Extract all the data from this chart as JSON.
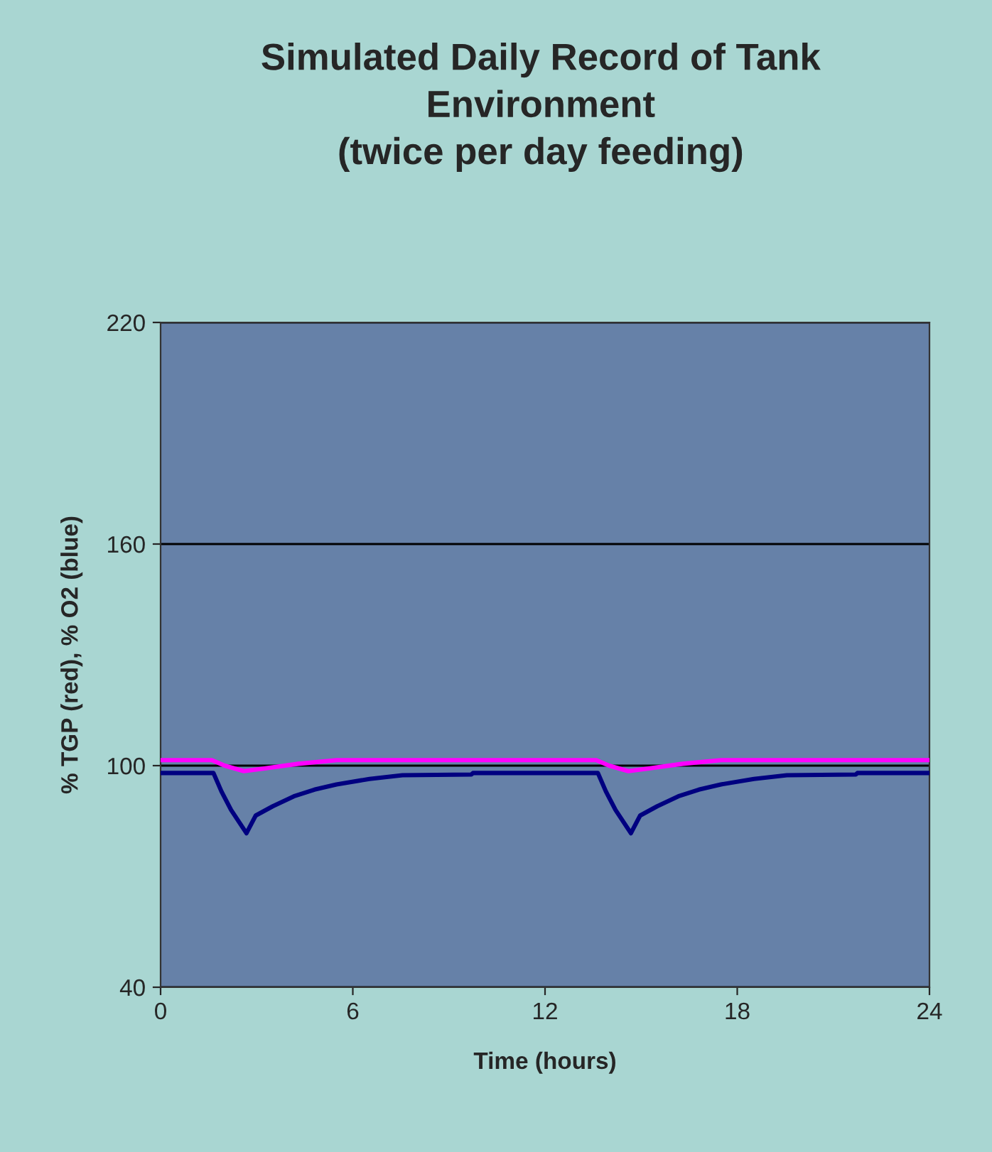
{
  "chart_data": {
    "type": "line",
    "title": "Simulated Daily Record of Tank\nEnvironment\n(twice per day feeding)",
    "xlabel": "Time (hours)",
    "ylabel": "% TGP (red), % O2 (blue)",
    "xlim": [
      0,
      24
    ],
    "xticks": [
      0,
      6,
      12,
      18,
      24
    ],
    "ylim": [
      40,
      220
    ],
    "yticks": [
      40,
      100,
      160,
      220
    ],
    "grid": "y",
    "legend": false,
    "marker": "none",
    "line_style": "solid",
    "series": [
      {
        "color": "#ff00ff",
        "x": [
          0,
          1.6,
          2.0,
          2.6,
          3.2,
          4.3,
          5.5,
          13.6,
          14.0,
          14.6,
          15.2,
          16.3,
          17.5,
          24
        ],
        "values": [
          101.5,
          101.5,
          100,
          98.5,
          99.2,
          100.5,
          101.5,
          101.5,
          100,
          98.5,
          99.2,
          100.5,
          101.5,
          101.5
        ]
      },
      {
        "color": "#000080",
        "x": [
          0,
          1.65,
          1.9,
          2.2,
          2.68,
          2.97,
          3.5,
          4.16,
          4.8,
          5.49,
          6.52,
          7.55,
          9.7,
          9.75,
          13.65,
          13.9,
          14.2,
          14.68,
          14.97,
          15.5,
          16.16,
          16.8,
          17.49,
          18.52,
          19.55,
          21.7,
          21.75,
          24
        ],
        "values": [
          98,
          98,
          93,
          88,
          81.7,
          86.5,
          89,
          91.7,
          93.5,
          94.9,
          96.4,
          97.4,
          97.6,
          98,
          98,
          93,
          88,
          81.7,
          86.5,
          89,
          91.7,
          93.5,
          94.9,
          96.4,
          97.4,
          97.6,
          98,
          98
        ]
      }
    ]
  }
}
